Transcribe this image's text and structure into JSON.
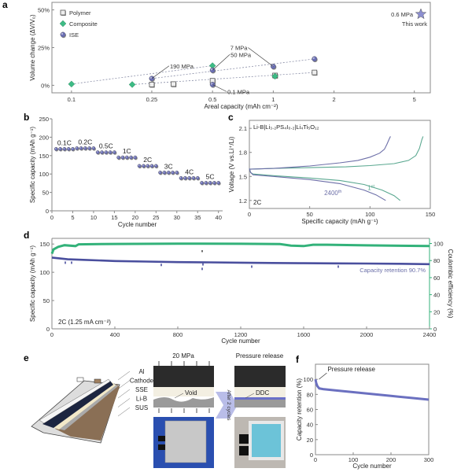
{
  "colors": {
    "polymer": "#8a8a8a",
    "composite": "#3dbb85",
    "ise": "#6b6fb5",
    "capacity": "#4a4f9e",
    "ce": "#33b27a",
    "first_cycle": "#5aa890",
    "cycle2400": "#6d6fa8",
    "axis": "#888888"
  },
  "chart_data": [
    {
      "panel": "a",
      "type": "scatter",
      "xlabel": "Areal capacity (mAh cm⁻²)",
      "ylabel": "Volume change (ΔV/V₀)",
      "xscale": "log",
      "xlim": [
        0.08,
        6
      ],
      "ylim": [
        -5,
        55
      ],
      "xticks": [
        0.1,
        0.25,
        0.5,
        1,
        2,
        5
      ],
      "xtick_labels": [
        "0.1",
        "0.25",
        "0.5",
        "1",
        "2",
        "5"
      ],
      "yticks": [
        0,
        25,
        50
      ],
      "ytick_labels": [
        "0%",
        "25%",
        "50%"
      ],
      "legend": [
        "Polymer",
        "Composite",
        "ISE"
      ],
      "legend_position": "top-left",
      "series": [
        {
          "name": "Polymer",
          "marker": "square",
          "points": [
            [
              0.25,
              0.5
            ],
            [
              0.32,
              0.8
            ],
            [
              0.5,
              3
            ],
            [
              1.02,
              6.5
            ],
            [
              1.6,
              8.5
            ]
          ]
        },
        {
          "name": "Composite",
          "marker": "diamond",
          "points": [
            [
              0.1,
              0.8
            ],
            [
              0.2,
              0.5
            ],
            [
              0.5,
              13
            ],
            [
              1.02,
              6
            ]
          ]
        },
        {
          "name": "ISE",
          "marker": "circle",
          "points": [
            [
              0.25,
              4.5
            ],
            [
              0.5,
              10
            ],
            [
              0.5,
              0.5
            ],
            [
              1.0,
              12.5
            ],
            [
              1.6,
              17.5
            ]
          ]
        }
      ],
      "trend_lines": [
        {
          "name": "Composite",
          "from": [
            0.1,
            0.8
          ],
          "to": [
            0.5,
            13
          ]
        },
        {
          "name": "ISE",
          "from": [
            0.25,
            4.5
          ],
          "to": [
            1.6,
            17.5
          ]
        },
        {
          "name": "Polymer",
          "from": [
            0.2,
            0.5
          ],
          "to": [
            1.6,
            8.5
          ]
        }
      ],
      "annotations": [
        {
          "text": "190 MPa",
          "point": [
            0.25,
            4.5
          ]
        },
        {
          "text": "50 MPa",
          "point": [
            0.5,
            10
          ]
        },
        {
          "text": "7 MPa",
          "point": [
            1.0,
            12.5
          ]
        },
        {
          "text": "0.1 MPa",
          "point": [
            0.5,
            0.5
          ]
        }
      ],
      "highlight": {
        "text": "0.6 MPa",
        "subtext": "This work",
        "marker": "star"
      }
    },
    {
      "panel": "b",
      "type": "scatter",
      "xlabel": "Cycle number",
      "ylabel": "Specific capacity (mAh g⁻¹)",
      "xlim": [
        0,
        41
      ],
      "ylim": [
        0,
        250
      ],
      "xticks": [
        0,
        5,
        10,
        15,
        20,
        25,
        30,
        35,
        40
      ],
      "yticks": [
        0,
        50,
        100,
        150,
        200,
        250
      ],
      "rate_labels": [
        {
          "text": "0.1C",
          "cycles": [
            1,
            5
          ],
          "capacity": 168
        },
        {
          "text": "0.2C",
          "cycles": [
            6,
            10
          ],
          "capacity": 170
        },
        {
          "text": "0.5C",
          "cycles": [
            11,
            15
          ],
          "capacity": 159
        },
        {
          "text": "1C",
          "cycles": [
            16,
            20
          ],
          "capacity": 145
        },
        {
          "text": "2C",
          "cycles": [
            21,
            25
          ],
          "capacity": 122
        },
        {
          "text": "3C",
          "cycles": [
            26,
            30
          ],
          "capacity": 104
        },
        {
          "text": "4C",
          "cycles": [
            31,
            35
          ],
          "capacity": 89
        },
        {
          "text": "5C",
          "cycles": [
            36,
            40
          ],
          "capacity": 76
        }
      ]
    },
    {
      "panel": "c",
      "type": "line",
      "xlabel": "Specific capacity (mAh g⁻¹)",
      "ylabel": "Voltage (V vs.Li⁺/Li)",
      "xlim": [
        0,
        150
      ],
      "ylim": [
        1.1,
        2.2
      ],
      "xticks": [
        0,
        50,
        100,
        150
      ],
      "yticks": [
        1.2,
        1.5,
        1.8,
        2.1
      ],
      "ytick_labels": [
        "1.2",
        "1.5",
        "1.8",
        "2.1"
      ],
      "cell_label": "Li-B|Li₃.₂PS₄I₀.₂|Li₄Ti₅O₁₂",
      "rate_label": "2C",
      "series": [
        {
          "name": "1st",
          "label": "1",
          "sup": "st",
          "charge": [
            [
              0,
              1.59
            ],
            [
              20,
              1.6
            ],
            [
              50,
              1.61
            ],
            [
              80,
              1.62
            ],
            [
              100,
              1.635
            ],
            [
              120,
              1.66
            ],
            [
              132,
              1.7
            ],
            [
              138,
              1.76
            ],
            [
              141,
              1.85
            ],
            [
              143,
              1.96
            ],
            [
              144,
              2.0
            ]
          ],
          "discharge": [
            [
              0,
              1.6
            ],
            [
              1,
              1.55
            ],
            [
              3,
              1.53
            ],
            [
              20,
              1.51
            ],
            [
              50,
              1.48
            ],
            [
              75,
              1.45
            ],
            [
              95,
              1.4
            ],
            [
              110,
              1.33
            ],
            [
              120,
              1.26
            ],
            [
              125,
              1.2
            ]
          ]
        },
        {
          "name": "2400th",
          "label": "2400",
          "sup": "th",
          "charge": [
            [
              0,
              1.59
            ],
            [
              20,
              1.6
            ],
            [
              50,
              1.63
            ],
            [
              75,
              1.67
            ],
            [
              90,
              1.7
            ],
            [
              100,
              1.74
            ],
            [
              108,
              1.79
            ],
            [
              112,
              1.84
            ],
            [
              114,
              1.9
            ],
            [
              116,
              1.97
            ],
            [
              117,
              2.0
            ]
          ],
          "discharge": [
            [
              0,
              1.6
            ],
            [
              1,
              1.55
            ],
            [
              3,
              1.52
            ],
            [
              20,
              1.5
            ],
            [
              50,
              1.46
            ],
            [
              75,
              1.41
            ],
            [
              95,
              1.33
            ],
            [
              105,
              1.27
            ],
            [
              113,
              1.2
            ]
          ]
        }
      ]
    },
    {
      "panel": "d",
      "type": "scatter",
      "xlabel": "Cycle number",
      "ylabel": "Specific capacity (mAh g⁻¹)",
      "ylabel_right": "Coulombic efficiency (%)",
      "xlim": [
        0,
        2400
      ],
      "ylim": [
        0,
        160
      ],
      "ylim_right": [
        0,
        106
      ],
      "xticks": [
        0,
        400,
        800,
        1200,
        1600,
        2000,
        2400
      ],
      "yticks": [
        0,
        50,
        100,
        150
      ],
      "yticks_right": [
        0,
        20,
        40,
        60,
        80,
        100
      ],
      "condition_label": "2C (1.25 mA cm⁻²)",
      "retention_label": "Capacity retention 90.7%",
      "series": [
        {
          "name": "Specific capacity",
          "axis": "left",
          "points": [
            [
              0,
              126
            ],
            [
              100,
              123
            ],
            [
              200,
              122
            ],
            [
              400,
              120
            ],
            [
              600,
              119
            ],
            [
              800,
              118
            ],
            [
              1000,
              117.5
            ],
            [
              1200,
              117
            ],
            [
              1400,
              116.5
            ],
            [
              1600,
              116
            ],
            [
              1800,
              115.8
            ],
            [
              2000,
              115.5
            ],
            [
              2200,
              115
            ],
            [
              2400,
              114.3
            ]
          ],
          "outliers": [
            [
              85,
              117
            ],
            [
              125,
              117
            ],
            [
              695,
              113
            ],
            [
              955,
              106
            ],
            [
              960,
              114
            ],
            [
              1270,
              110
            ],
            [
              1820,
              110
            ]
          ]
        },
        {
          "name": "Coulombic efficiency",
          "axis": "right",
          "points": [
            [
              0,
              88
            ],
            [
              10,
              93
            ],
            [
              40,
              96
            ],
            [
              80,
              98
            ],
            [
              150,
              97
            ],
            [
              170,
              99
            ],
            [
              400,
              99.5
            ],
            [
              800,
              99.8
            ],
            [
              1200,
              99.6
            ],
            [
              1450,
              99.3
            ],
            [
              1520,
              97.5
            ],
            [
              1600,
              97
            ],
            [
              1660,
              98.5
            ],
            [
              1750,
              98.5
            ],
            [
              2000,
              97.8
            ],
            [
              2400,
              97
            ]
          ],
          "outliers": [
            [
              955,
              91
            ]
          ]
        }
      ]
    },
    {
      "panel": "f",
      "type": "line",
      "xlabel": "Cycle number",
      "ylabel": "Capacity retention (%)",
      "xlim": [
        0,
        300
      ],
      "ylim": [
        0,
        120
      ],
      "xticks": [
        0,
        100,
        200,
        300
      ],
      "yticks": [
        0,
        20,
        40,
        60,
        80,
        100
      ],
      "annotation": {
        "text": "Pressure release",
        "point": [
          3,
          100
        ]
      },
      "points": [
        [
          0,
          100
        ],
        [
          2,
          95
        ],
        [
          5,
          91
        ],
        [
          10,
          88
        ],
        [
          20,
          87
        ],
        [
          50,
          85.5
        ],
        [
          100,
          83
        ],
        [
          150,
          80.5
        ],
        [
          200,
          78
        ],
        [
          250,
          75.5
        ],
        [
          300,
          73
        ]
      ]
    }
  ],
  "panels": {
    "a": "a",
    "b": "b",
    "c": "c",
    "d": "d",
    "e": "e",
    "f": "f"
  },
  "schematic_e": {
    "layers": [
      "Al",
      "Cathode",
      "SSE",
      "Li-B",
      "SUS"
    ],
    "pressure_label": "20 MPa",
    "void_label": "Void",
    "arrow_label": "After 2 cycles",
    "release_title": "Pressure release",
    "ddc_label": "DDC"
  }
}
